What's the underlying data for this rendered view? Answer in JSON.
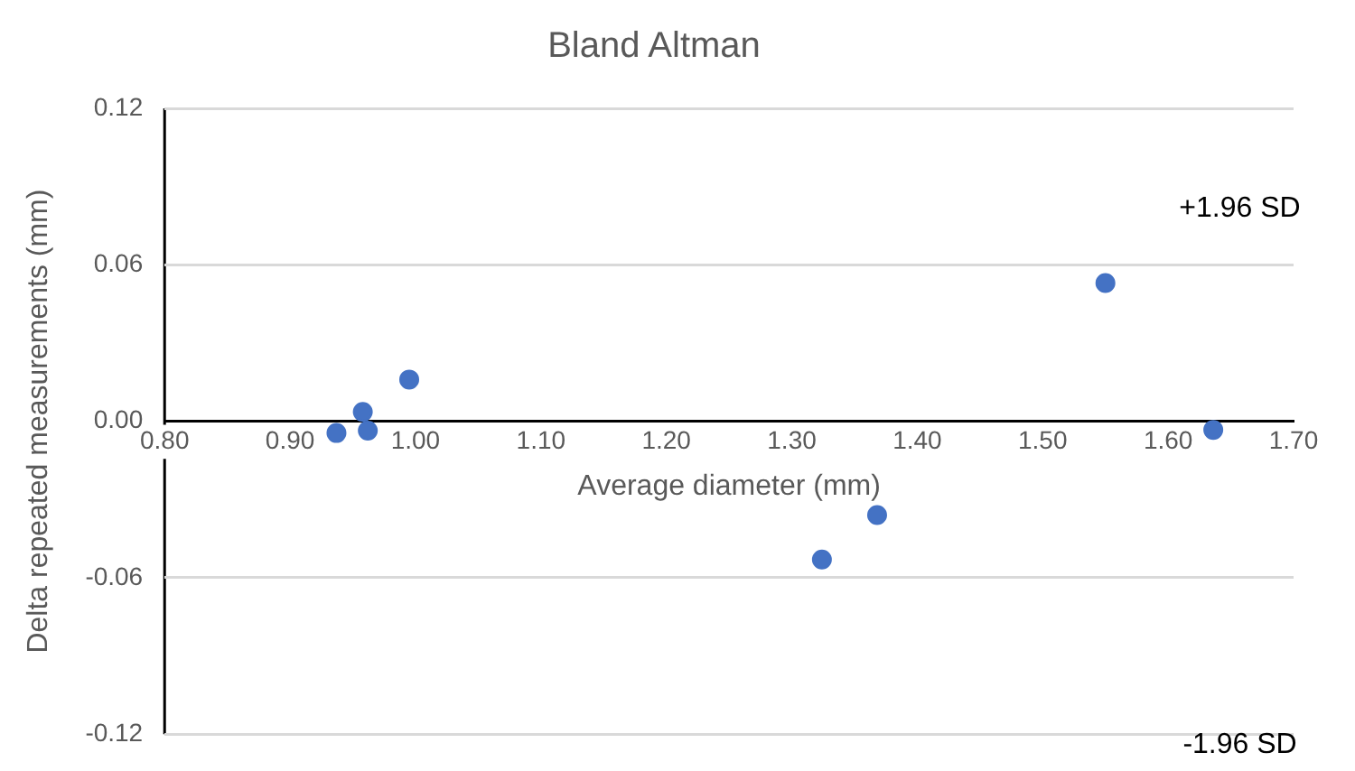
{
  "chart_data": {
    "type": "scatter",
    "title": "Bland Altman",
    "xlabel": "Average diameter (mm)",
    "ylabel": "Delta repeated measurements (mm)",
    "x": [
      0.937,
      0.958,
      0.962,
      0.995,
      1.324,
      1.368,
      1.55,
      1.636
    ],
    "series": [
      {
        "color": "#4472c4",
        "values": [
          -0.0045,
          0.0036,
          -0.0036,
          0.016,
          -0.053,
          -0.036,
          0.053,
          -0.0033
        ]
      }
    ],
    "xlim": [
      0.8,
      1.7
    ],
    "xticks": [
      {
        "value": 0.8,
        "label": "0.80"
      },
      {
        "value": 0.9,
        "label": "0.90"
      },
      {
        "value": 1.0,
        "label": "1.00"
      },
      {
        "value": 1.1,
        "label": "1.10"
      },
      {
        "value": 1.2,
        "label": "1.20"
      },
      {
        "value": 1.3,
        "label": "1.30"
      },
      {
        "value": 1.4,
        "label": "1.40"
      },
      {
        "value": 1.5,
        "label": "1.50"
      },
      {
        "value": 1.6,
        "label": "1.60"
      },
      {
        "value": 1.7,
        "label": "1.70"
      }
    ],
    "ylim": [
      -0.12,
      0.12
    ],
    "yticks": [
      -0.12,
      -0.06,
      {
        "value": 0,
        "label": "0.00"
      },
      0.06,
      0.12
    ],
    "grid": "y",
    "marker": "circle",
    "annotations": [
      "+1.96 SD",
      "-1.96 SD"
    ]
  }
}
